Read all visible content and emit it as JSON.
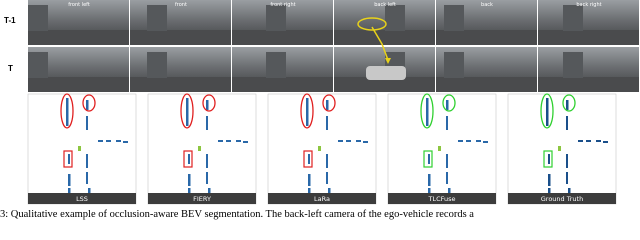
{
  "rows": [
    "T-1",
    "T"
  ],
  "cameras": [
    "front left",
    "front",
    "front right",
    "back left",
    "back",
    "back right"
  ],
  "methods": [
    "LSS",
    "FIERY",
    "LaRa",
    "TLCFuse",
    "Ground Truth"
  ],
  "caption": "3: Qualitative example of occlusion-aware BEV segmentation. The back-left camera of the ego-vehicle records a"
}
